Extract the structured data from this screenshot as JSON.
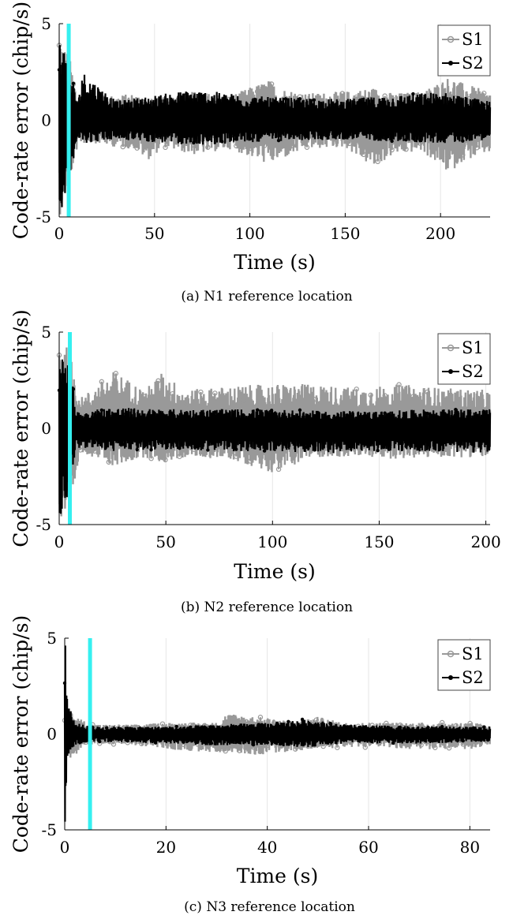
{
  "figure": {
    "captions": [
      "(a) N1 reference location",
      "(b) N2 reference location",
      "(c) N3 reference location"
    ]
  },
  "chart_data": [
    {
      "type": "line",
      "panel_caption": "(a) N1 reference location",
      "xlabel": "Time (s)",
      "ylabel": "Code-rate error (chip/s)",
      "xlim": [
        0,
        226
      ],
      "ylim": [
        -5,
        5
      ],
      "xticks": [
        0,
        50,
        100,
        150,
        200
      ],
      "yticks": [
        -5,
        0,
        5
      ],
      "grid": true,
      "legend_position": "top-right",
      "marker_time_s": 5,
      "marker_color": "#35f0f0",
      "series": [
        {
          "name": "S1",
          "color": "#999999",
          "marker": "circle",
          "x": [
            0,
            2,
            5,
            10,
            20,
            30,
            40,
            46,
            55,
            70,
            90,
            110,
            115,
            130,
            150,
            165,
            175,
            190,
            205,
            210,
            225
          ],
          "envelope_upper": [
            5.0,
            4.0,
            3.5,
            1.1,
            1.3,
            1.3,
            1.4,
            1.1,
            1.2,
            1.5,
            1.3,
            2.1,
            1.7,
            1.4,
            1.5,
            1.7,
            1.4,
            1.5,
            2.3,
            2.0,
            1.5
          ],
          "envelope_lower": [
            -5.0,
            -4.5,
            -3.5,
            -1.2,
            -1.2,
            -1.4,
            -1.5,
            -2.1,
            -1.4,
            -1.8,
            -1.5,
            -2.3,
            -2.1,
            -1.5,
            -1.4,
            -2.5,
            -1.8,
            -1.6,
            -2.8,
            -2.2,
            -1.7
          ]
        },
        {
          "name": "S2",
          "color": "#000000",
          "marker": "dot",
          "x": [
            0,
            2,
            5,
            10,
            12,
            30,
            70,
            110,
            150,
            200,
            225
          ],
          "envelope_upper": [
            4.8,
            4.0,
            3.0,
            1.0,
            2.6,
            1.0,
            1.6,
            1.2,
            1.1,
            1.5,
            1.0
          ],
          "envelope_lower": [
            -4.8,
            -4.4,
            -3.0,
            -1.0,
            -1.2,
            -1.0,
            -1.3,
            -1.1,
            -1.0,
            -1.2,
            -1.0
          ]
        }
      ]
    },
    {
      "type": "line",
      "panel_caption": "(b) N2 reference location",
      "xlabel": "Time (s)",
      "ylabel": "Code-rate error (chip/s)",
      "xlim": [
        0,
        202
      ],
      "ylim": [
        -5,
        5
      ],
      "xticks": [
        0,
        50,
        100,
        150,
        200
      ],
      "yticks": [
        -5,
        0,
        5
      ],
      "grid": true,
      "legend_position": "top-right",
      "marker_time_s": 5,
      "marker_color": "#35f0f0",
      "series": [
        {
          "name": "S1",
          "color": "#999999",
          "marker": "circle",
          "x": [
            0,
            2,
            5,
            10,
            26,
            40,
            48,
            60,
            80,
            100,
            120,
            140,
            160,
            180,
            200
          ],
          "envelope_upper": [
            5.0,
            4.5,
            4.0,
            1.6,
            3.0,
            2.0,
            2.9,
            2.0,
            2.2,
            2.3,
            2.3,
            2.1,
            2.3,
            2.1,
            2.0
          ],
          "envelope_lower": [
            -5.0,
            -4.8,
            -5.0,
            -1.2,
            -2.0,
            -1.5,
            -1.8,
            -1.5,
            -1.6,
            -2.3,
            -1.5,
            -1.5,
            -1.6,
            -1.5,
            -1.5
          ]
        },
        {
          "name": "S2",
          "color": "#000000",
          "marker": "dot",
          "x": [
            0,
            2,
            4,
            8,
            25,
            50,
            75,
            100,
            125,
            150,
            175,
            200
          ],
          "envelope_upper": [
            4.5,
            4.3,
            4.3,
            0.9,
            1.1,
            1.0,
            1.0,
            1.0,
            0.9,
            0.9,
            1.0,
            1.0
          ],
          "envelope_lower": [
            -4.8,
            -4.2,
            -3.5,
            -1.0,
            -1.2,
            -1.1,
            -1.2,
            -1.2,
            -1.3,
            -1.2,
            -1.2,
            -1.3
          ]
        }
      ]
    },
    {
      "type": "line",
      "panel_caption": "(c) N3 reference location",
      "xlabel": "Time (s)",
      "ylabel": "Code-rate error (chip/s)",
      "xlim": [
        0,
        84
      ],
      "ylim": [
        -5,
        5
      ],
      "xticks": [
        0,
        20,
        40,
        60,
        80
      ],
      "yticks": [
        -5,
        0,
        5
      ],
      "grid": true,
      "legend_position": "top-right",
      "marker_time_s": 5,
      "marker_color": "#35f0f0",
      "series": [
        {
          "name": "S1",
          "color": "#999999",
          "marker": "circle",
          "x": [
            0,
            1,
            3,
            6,
            15,
            20,
            30,
            32,
            38,
            45,
            50,
            55,
            60,
            70,
            80,
            84
          ],
          "envelope_upper": [
            1.0,
            1.2,
            0.8,
            0.5,
            0.5,
            0.6,
            0.6,
            1.1,
            0.9,
            0.7,
            0.9,
            0.6,
            0.6,
            0.6,
            0.6,
            0.5
          ],
          "envelope_lower": [
            -1.5,
            -1.5,
            -0.8,
            -0.5,
            -0.6,
            -0.8,
            -1.0,
            -0.9,
            -1.1,
            -0.9,
            -0.8,
            -0.7,
            -0.7,
            -0.8,
            -0.8,
            -0.6
          ]
        },
        {
          "name": "S2",
          "color": "#000000",
          "marker": "dot",
          "x": [
            0,
            0.2,
            0.5,
            2,
            5,
            20,
            30,
            40,
            48,
            55,
            70,
            84
          ],
          "envelope_upper": [
            4.9,
            4.5,
            2.0,
            0.6,
            0.4,
            0.4,
            0.5,
            0.6,
            0.8,
            0.5,
            0.4,
            0.4
          ],
          "envelope_lower": [
            -5.0,
            -4.5,
            -1.2,
            -0.6,
            -0.4,
            -0.5,
            -0.6,
            -0.6,
            -0.7,
            -0.5,
            -0.5,
            -0.4
          ]
        }
      ]
    }
  ]
}
